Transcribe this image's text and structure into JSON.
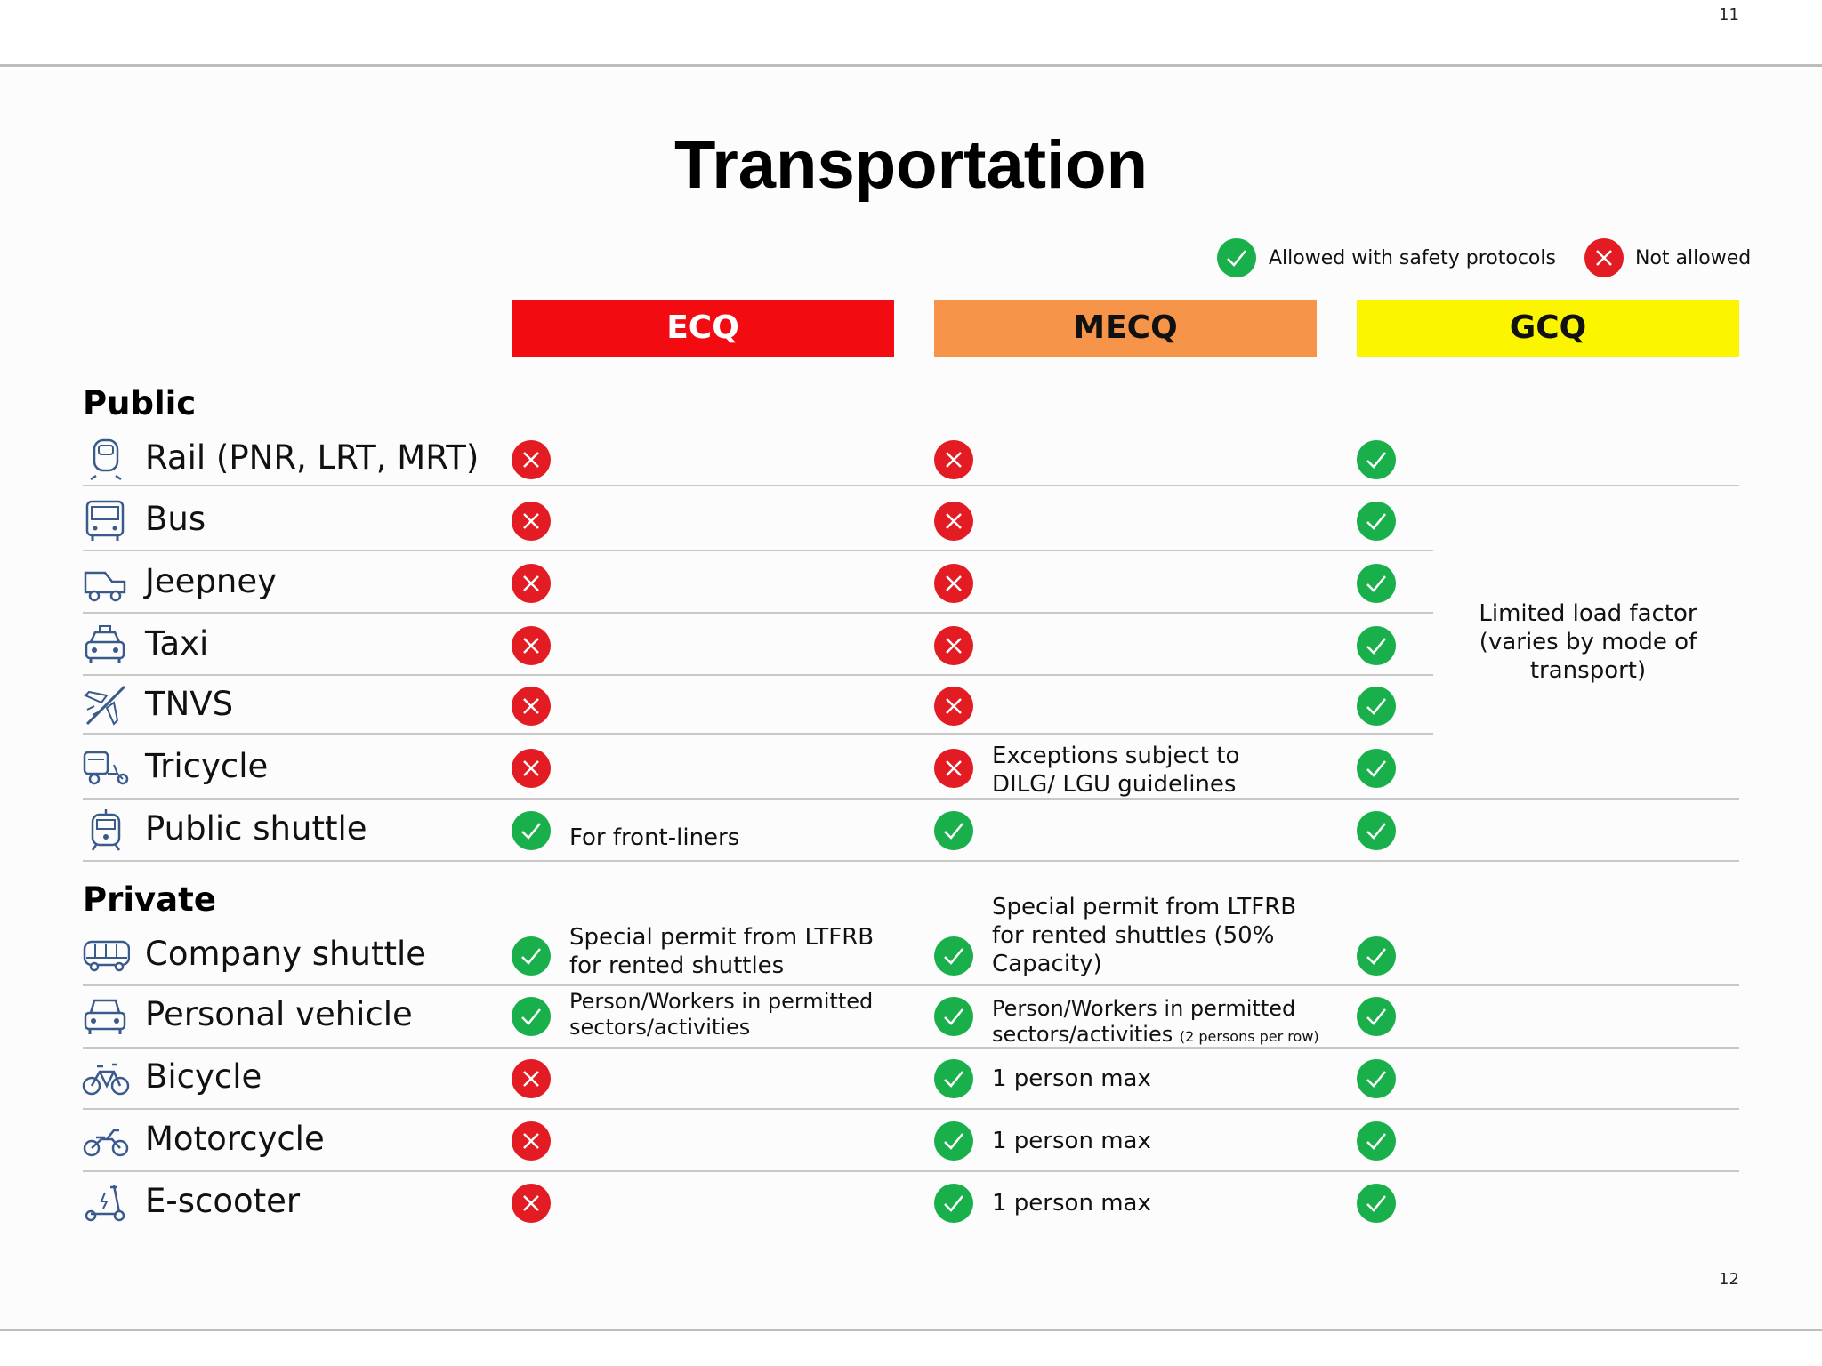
{
  "top_page_number": "11",
  "bottom_page_number": "12",
  "title": "Transportation",
  "legend": {
    "allowed": "Allowed with safety protocols",
    "not_allowed": "Not allowed"
  },
  "columns": [
    {
      "label": "ECQ",
      "color": "#f20c12"
    },
    {
      "label": "MECQ",
      "color": "#f6954a"
    },
    {
      "label": "GCQ",
      "color": "#fbf600"
    }
  ],
  "colors": {
    "allowed": "#19b04b",
    "not_allowed": "#e31b23"
  },
  "sections": {
    "public": "Public",
    "private": "Private"
  },
  "public_rows": [
    {
      "icon": "train-icon",
      "label": "Rail (PNR, LRT, MRT)",
      "ecq": "not_allowed",
      "mecq": "not_allowed",
      "gcq": "allowed"
    },
    {
      "icon": "bus-icon",
      "label": "Bus",
      "ecq": "not_allowed",
      "mecq": "not_allowed",
      "gcq": "allowed"
    },
    {
      "icon": "jeepney-icon",
      "label": "Jeepney",
      "ecq": "not_allowed",
      "mecq": "not_allowed",
      "gcq": "allowed"
    },
    {
      "icon": "taxi-icon",
      "label": "Taxi",
      "ecq": "not_allowed",
      "mecq": "not_allowed",
      "gcq": "allowed"
    },
    {
      "icon": "airplane-icon",
      "label": "TNVS",
      "ecq": "not_allowed",
      "mecq": "not_allowed",
      "gcq": "allowed"
    },
    {
      "icon": "tricycle-icon",
      "label": "Tricycle",
      "ecq": "not_allowed",
      "mecq": "not_allowed",
      "gcq": "allowed"
    },
    {
      "icon": "shuttle-icon",
      "label": "Public shuttle",
      "ecq": "allowed",
      "mecq": "allowed",
      "gcq": "allowed"
    }
  ],
  "private_rows": [
    {
      "icon": "company-shuttle-icon",
      "label": "Company shuttle",
      "ecq": "allowed",
      "mecq": "allowed",
      "gcq": "allowed"
    },
    {
      "icon": "car-icon",
      "label": "Personal vehicle",
      "ecq": "allowed",
      "mecq": "allowed",
      "gcq": "allowed"
    },
    {
      "icon": "bicycle-icon",
      "label": "Bicycle",
      "ecq": "not_allowed",
      "mecq": "allowed",
      "gcq": "allowed"
    },
    {
      "icon": "motorcycle-icon",
      "label": "Motorcycle",
      "ecq": "not_allowed",
      "mecq": "allowed",
      "gcq": "allowed"
    },
    {
      "icon": "scooter-icon",
      "label": "E-scooter",
      "ecq": "not_allowed",
      "mecq": "allowed",
      "gcq": "allowed"
    }
  ],
  "notes": {
    "tricycle_mecq": [
      "Exceptions subject to",
      "DILG/ LGU guidelines"
    ],
    "public_shuttle_ecq": "For front-liners",
    "company_shuttle_ecq": [
      "Special permit from LTFRB",
      "for rented shuttles"
    ],
    "company_shuttle_mecq": [
      "Special permit from LTFRB",
      "for rented shuttles (50%",
      "Capacity)"
    ],
    "personal_vehicle_ecq": [
      "Person/Workers in permitted",
      "sectors/activities"
    ],
    "personal_vehicle_mecq_1": "Person/Workers in permitted",
    "personal_vehicle_mecq_2": "sectors/activities",
    "personal_vehicle_mecq_small": "(2 persons per row)",
    "bicycle_mecq": "1 person max",
    "motorcycle_mecq": "1 person max",
    "escooter_mecq": "1 person max",
    "gcq_public": [
      "Limited load factor",
      "(varies by mode of",
      "transport)"
    ]
  }
}
